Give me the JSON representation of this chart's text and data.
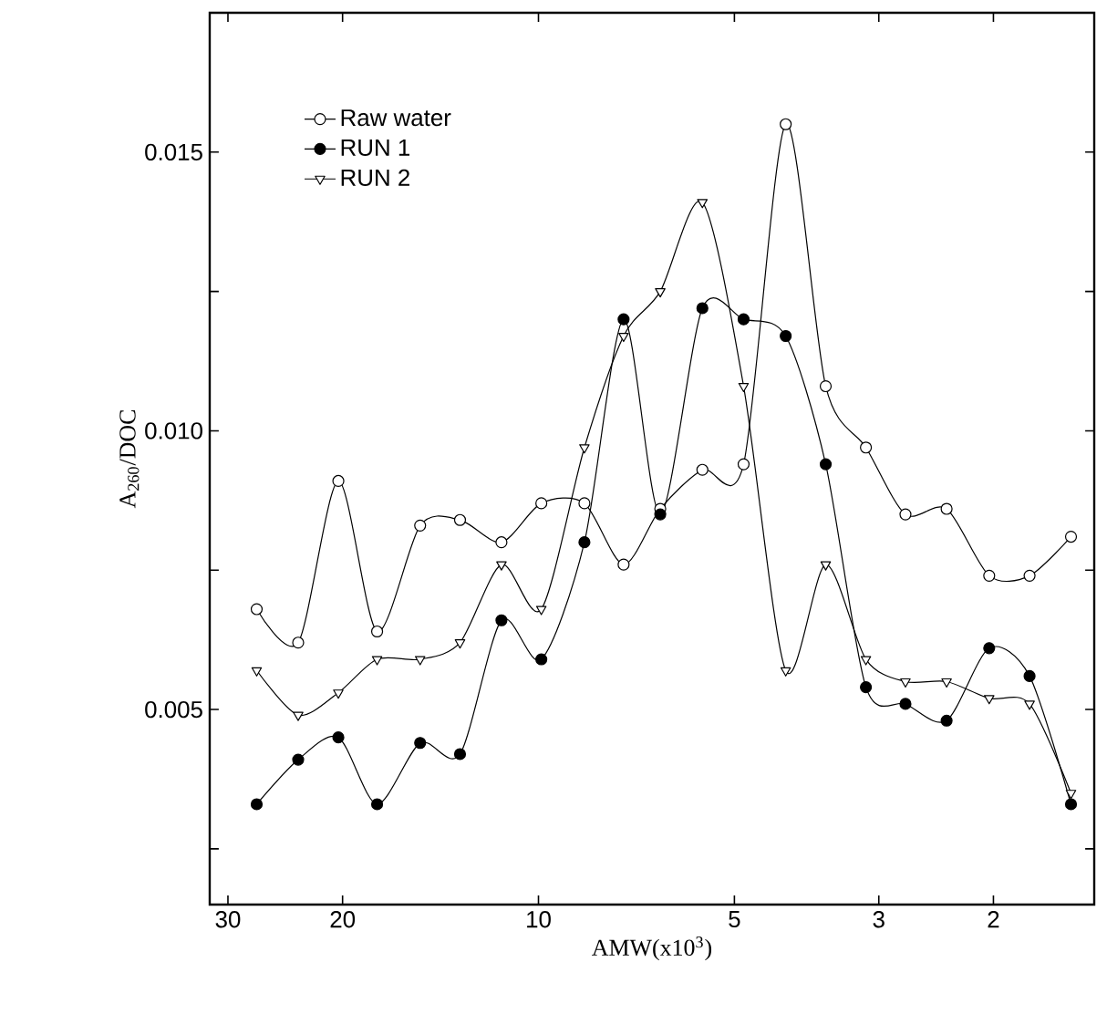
{
  "chart_data": {
    "type": "line",
    "xlabel": "AMW(x10$^{3}$)",
    "ylabel": "A$_{260}$/DOC",
    "log": "x",
    "xlim": [
      32,
      1.4
    ],
    "xticks": [
      30,
      20,
      10,
      5,
      3,
      2
    ],
    "ylim": [
      0.0015,
      0.0175
    ],
    "yticks": [
      {
        "value": 0.0025,
        "label": null
      },
      0.005,
      {
        "value": 0.0075,
        "label": null
      },
      {
        "value": 0.01,
        "label": "0.010"
      },
      {
        "value": 0.0125,
        "label": null
      },
      0.015
    ],
    "x": [
      27.1,
      23.4,
      20.3,
      17.7,
      15.2,
      13.2,
      11.4,
      9.9,
      8.5,
      7.4,
      6.5,
      5.6,
      4.84,
      4.17,
      3.62,
      3.14,
      2.73,
      2.36,
      2.03,
      1.76,
      1.52
    ],
    "legend": "top left",
    "grid": false,
    "line_style": "solid",
    "series": [
      {
        "name": "Raw water",
        "color": "#000000",
        "marker": "circle",
        "values": [
          0.0068,
          0.0062,
          0.0091,
          0.0064,
          0.0083,
          0.0084,
          0.008,
          0.0087,
          0.0087,
          0.0076,
          0.0086,
          0.0093,
          0.0094,
          0.0155,
          0.0108,
          0.0097,
          0.0085,
          0.0086,
          0.0074,
          0.0074,
          0.0081
        ]
      },
      {
        "name": "RUN 1",
        "color": "#000000",
        "marker": "filled circle",
        "values": [
          0.0033,
          0.0041,
          0.0045,
          0.0033,
          0.0044,
          0.0042,
          0.0066,
          0.0059,
          0.008,
          0.012,
          0.0085,
          0.0122,
          0.012,
          0.0117,
          0.0094,
          0.0054,
          0.0051,
          0.0048,
          0.0061,
          0.0056,
          0.0033
        ]
      },
      {
        "name": "RUN 2",
        "color": "#000000",
        "marker": "triangle",
        "values": [
          0.0057,
          0.0049,
          0.0053,
          0.0059,
          0.0059,
          0.0062,
          0.0076,
          0.0068,
          0.0097,
          0.0117,
          0.0125,
          0.0141,
          0.0108,
          0.0057,
          0.0076,
          0.0059,
          0.0055,
          0.0055,
          0.0052,
          0.0051,
          0.0035
        ]
      }
    ]
  }
}
